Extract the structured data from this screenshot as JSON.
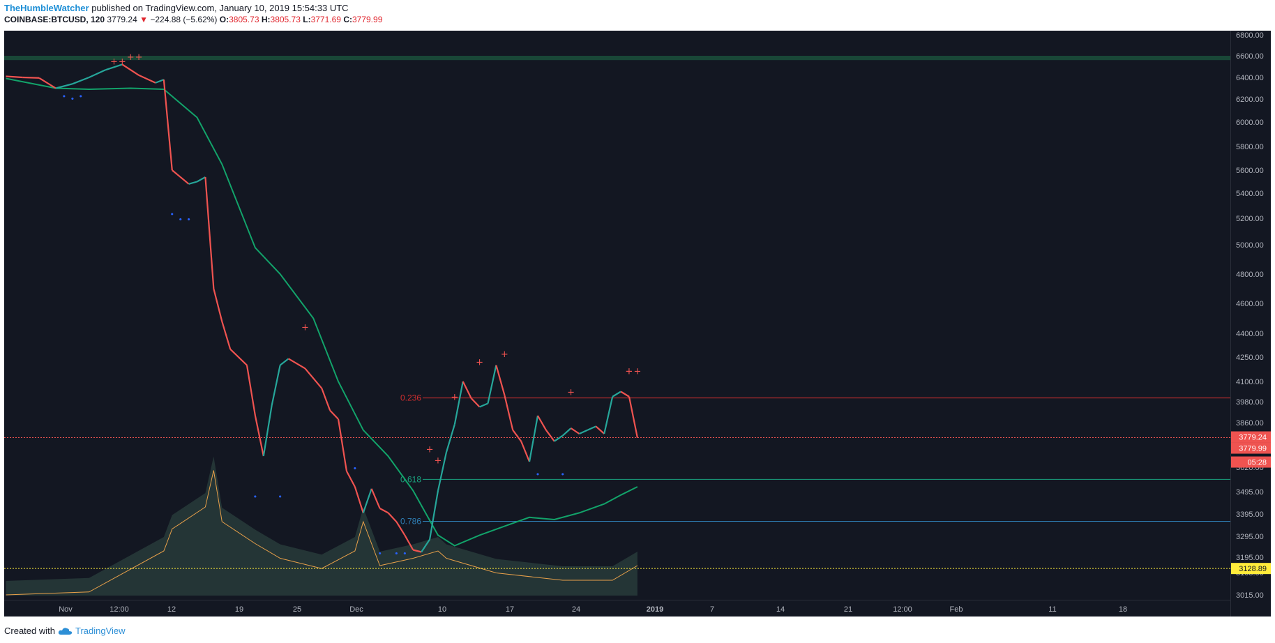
{
  "header": {
    "author": "TheHumbleWatcher",
    "published_text": "published on TradingView.com, January 10, 2019 15:54:33 UTC",
    "symbol": "COINBASE:BTCUSD, 120",
    "last_price": "3779.24",
    "change_arrow": "▼",
    "change": "−224.88 (−5.62%)",
    "o_label": "O:",
    "o_value": "3805.73",
    "h_label": "H:",
    "h_value": "3805.73",
    "l_label": "L:",
    "l_value": "3771.69",
    "c_label": "C:",
    "c_value": "3779.99"
  },
  "footer": {
    "created_with": "Created with",
    "brand": "TradingView",
    "logo_icon": "tradingview-cloud-icon"
  },
  "colors": {
    "background": "#131722",
    "up": "#26a69a",
    "down": "#ef5350",
    "ma": "#12a36a",
    "fib_0236": "#d32f2f",
    "fib_0618": "#1aa37f",
    "fib_0786": "#2f80b8",
    "last_price_tag": "#ef5350",
    "yellow_tag": "#ffeb3b"
  },
  "chart_data": {
    "type": "line",
    "symbol": "COINBASE:BTCUSD",
    "interval": "120",
    "y_ticks": [
      "6800.00",
      "6600.00",
      "6400.00",
      "6200.00",
      "6000.00",
      "5800.00",
      "5600.00",
      "5400.00",
      "5200.00",
      "5000.00",
      "4800.00",
      "4600.00",
      "4400.00",
      "4250.00",
      "4100.00",
      "3980.00",
      "3860.00",
      "3620.00",
      "3495.00",
      "3395.00",
      "3295.00",
      "3195.00",
      "3105.00",
      "3015.00"
    ],
    "x_ticks": [
      "Nov",
      "12:00",
      "12",
      "19",
      "25",
      "Dec",
      "10",
      "17",
      "24",
      "2019",
      "7",
      "14",
      "21",
      "12:00",
      "Feb",
      "11",
      "18"
    ],
    "price_path": {
      "x": [
        "Oct 26",
        "Oct 28",
        "Oct 30",
        "Nov 1",
        "Nov 3",
        "Nov 5",
        "Nov 7",
        "Nov 9",
        "Nov 11",
        "Nov 13",
        "Nov 14",
        "Nov 15",
        "Nov 17",
        "Nov 18",
        "Nov 19",
        "Nov 20",
        "Nov 21",
        "Nov 22",
        "Nov 24",
        "Nov 25",
        "Nov 26",
        "Nov 27",
        "Nov 28",
        "Nov 29",
        "Dec 1",
        "Dec 3",
        "Dec 4",
        "Dec 5",
        "Dec 6",
        "Dec 7",
        "Dec 8",
        "Dec 9",
        "Dec 10",
        "Dec 11",
        "Dec 12",
        "Dec 13",
        "Dec 14",
        "Dec 15",
        "Dec 16",
        "Dec 17",
        "Dec 18",
        "Dec 19",
        "Dec 20",
        "Dec 21",
        "Dec 22",
        "Dec 23",
        "Dec 24",
        "Dec 25",
        "Dec 26",
        "Dec 27",
        "Dec 28",
        "Dec 29",
        "Dec 30",
        "Dec 31",
        "Jan 1",
        "Jan 2",
        "Jan 3",
        "Jan 4",
        "Jan 5",
        "Jan 6",
        "Jan 7",
        "Jan 8",
        "Jan 9",
        "Jan 10"
      ],
      "y": [
        6410,
        6400,
        6395,
        6300,
        6340,
        6400,
        6470,
        6520,
        6420,
        6350,
        6380,
        5600,
        5480,
        5500,
        5540,
        4700,
        4480,
        4300,
        4200,
        3900,
        3680,
        3960,
        4200,
        4240,
        4180,
        4060,
        3930,
        3880,
        3600,
        3520,
        3400,
        3510,
        3420,
        3400,
        3360,
        3300,
        3230,
        3220,
        3280,
        3500,
        3700,
        3850,
        4100,
        4000,
        3950,
        3970,
        4200,
        4020,
        3820,
        3760,
        3650,
        3900,
        3820,
        3760,
        3790,
        3830,
        3800,
        3820,
        3840,
        3800,
        4010,
        4040,
        4010,
        3779
      ]
    },
    "moving_average": {
      "x": [
        "Oct 26",
        "Nov 1",
        "Nov 5",
        "Nov 10",
        "Nov 14",
        "Nov 18",
        "Nov 21",
        "Nov 25",
        "Nov 28",
        "Dec 2",
        "Dec 5",
        "Dec 8",
        "Dec 11",
        "Dec 14",
        "Dec 17",
        "Dec 19",
        "Dec 22",
        "Dec 25",
        "Dec 28",
        "Dec 31",
        "Jan 3",
        "Jan 6",
        "Jan 8",
        "Jan 10"
      ],
      "y": [
        6390,
        6300,
        6290,
        6300,
        6290,
        6040,
        5650,
        4980,
        4800,
        4500,
        4100,
        3820,
        3680,
        3500,
        3300,
        3250,
        3300,
        3340,
        3380,
        3370,
        3400,
        3440,
        3480,
        3520
      ]
    },
    "volume": {
      "x": [
        "Oct 26",
        "Nov 5",
        "Nov 14",
        "Nov 15",
        "Nov 19",
        "Nov 20",
        "Nov 21",
        "Nov 25",
        "Nov 28",
        "Dec 3",
        "Dec 7",
        "Dec 8",
        "Dec 10",
        "Dec 14",
        "Dec 17",
        "Dec 18",
        "Dec 21",
        "Dec 24",
        "Jan 1",
        "Jan 7",
        "Jan 10"
      ],
      "y": [
        10,
        12,
        40,
        55,
        70,
        95,
        60,
        45,
        35,
        28,
        40,
        60,
        30,
        35,
        40,
        35,
        30,
        25,
        20,
        20,
        30
      ]
    },
    "fib_levels": [
      {
        "label": "0.236",
        "value": 4002
      },
      {
        "label": "0.618",
        "value": 3558
      },
      {
        "label": "0.786",
        "value": 3362
      }
    ],
    "horizontal_lines": {
      "last_price": 3779.24,
      "dotted_yellow": 3128.89
    },
    "resistance_zone": [
      6560,
      6600
    ],
    "price_tags": {
      "last_price": "3779.24",
      "close": "3779.99",
      "countdown": "05:28",
      "yellow": "3128.89"
    },
    "up_markers": {
      "x": [
        "Nov 8",
        "Nov 9",
        "Nov 10",
        "Nov 11",
        "Dec 1",
        "Dec 16",
        "Dec 17",
        "Dec 19",
        "Dec 22",
        "Dec 25",
        "Jan 2",
        "Jan 9",
        "Jan 9",
        "Jan 10"
      ],
      "y": [
        6520,
        6520,
        6560,
        6560,
        4420,
        3700,
        3640,
        3990,
        4200,
        4250,
        4020,
        4145,
        4145,
        4145
      ]
    },
    "down_markers": {
      "x": [
        "Nov 2",
        "Nov 3",
        "Nov 4",
        "Nov 15",
        "Nov 16",
        "Nov 17",
        "Nov 25",
        "Nov 28",
        "Dec 7",
        "Dec 10",
        "Dec 12",
        "Dec 13",
        "Dec 29",
        "Jan 1"
      ],
      "y": [
        6200,
        6180,
        6200,
        5210,
        5170,
        5170,
        3460,
        3460,
        3600,
        3200,
        3200,
        3200,
        3570,
        3570
      ]
    }
  }
}
